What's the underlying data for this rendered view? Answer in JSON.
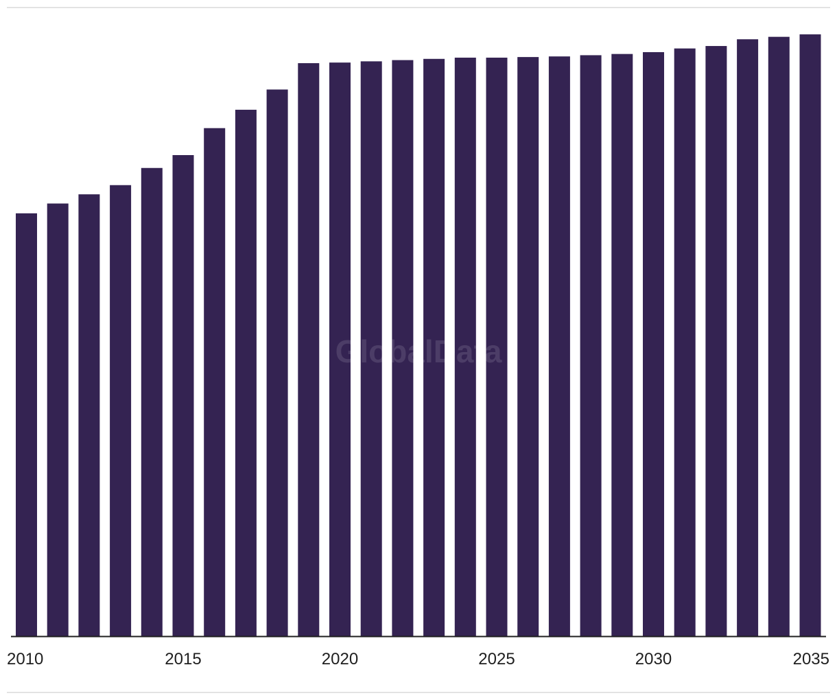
{
  "watermark": "GlobalData",
  "colors": {
    "bar": "#342352",
    "axis": "#1f1f1f",
    "divider": "#e3e3e3",
    "background": "#ffffff"
  },
  "chart_data": {
    "type": "bar",
    "title": "",
    "xlabel": "",
    "ylabel": "",
    "categories": [
      2010,
      2011,
      2012,
      2013,
      2014,
      2015,
      2016,
      2017,
      2018,
      2019,
      2020,
      2021,
      2022,
      2023,
      2024,
      2025,
      2026,
      2027,
      2028,
      2029,
      2030,
      2031,
      2032,
      2033,
      2034,
      2035
    ],
    "x_tick_labels": [
      "2010",
      "2015",
      "2020",
      "2025",
      "2030",
      "2035"
    ],
    "values": [
      69.0,
      70.6,
      72.1,
      73.6,
      76.4,
      78.5,
      82.9,
      85.9,
      89.2,
      93.5,
      93.6,
      93.8,
      94.0,
      94.2,
      94.4,
      94.4,
      94.5,
      94.6,
      94.8,
      95.0,
      95.3,
      95.9,
      96.3,
      97.4,
      97.8,
      98.2
    ],
    "ylim": [
      0,
      100
    ],
    "grid": false,
    "legend": "none"
  }
}
